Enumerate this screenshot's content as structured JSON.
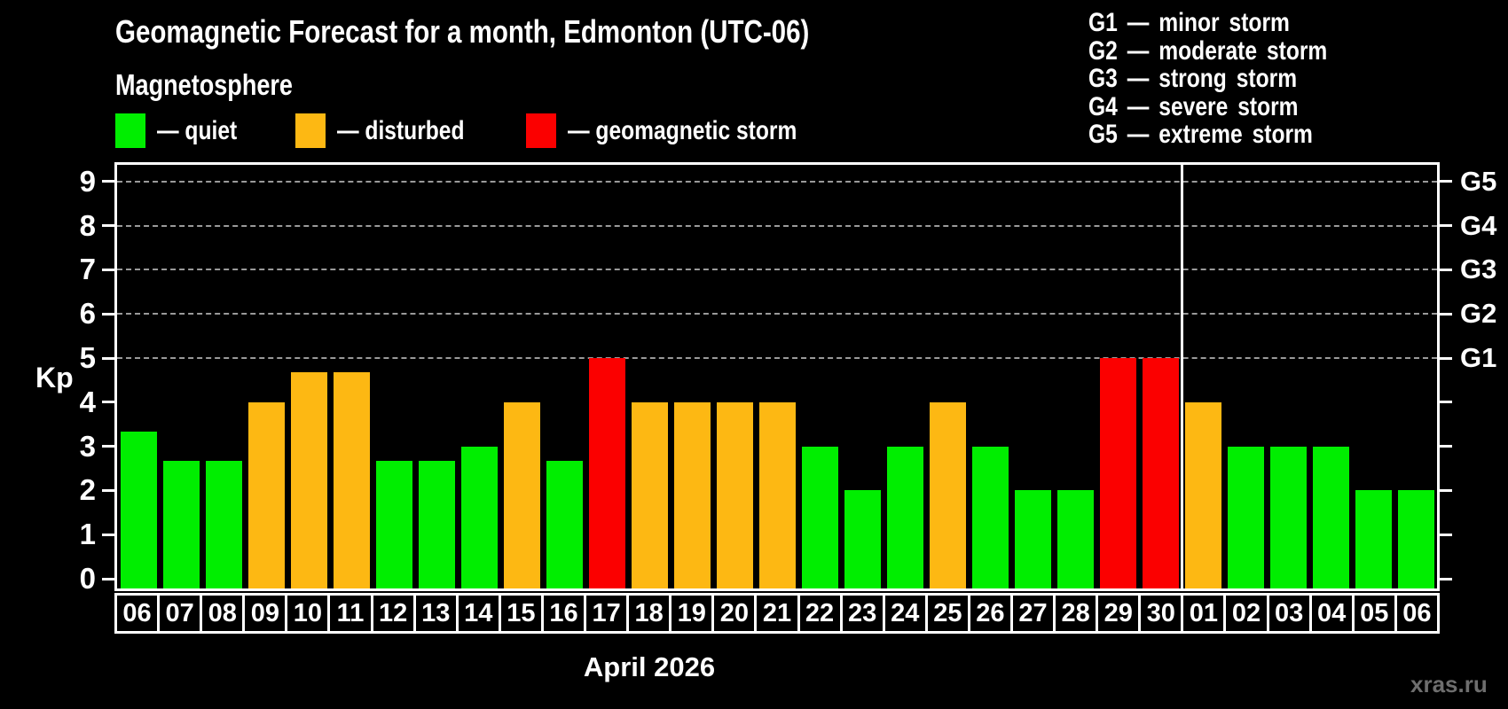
{
  "title": "Geomagnetic Forecast for a month, Edmonton (UTC-06)",
  "subtitle": "Magnetosphere",
  "legend": {
    "quiet": "— quiet",
    "disturbed": "— disturbed",
    "storm": "— geomagnetic storm"
  },
  "g_scale_legend": [
    "G1 — minor storm",
    "G2 — moderate storm",
    "G3 — strong storm",
    "G4 — severe storm",
    "G5 — extreme storm"
  ],
  "watermark": "xras.ru",
  "colors": {
    "quiet": "#00ee00",
    "disturbed": "#fdb813",
    "storm": "#fb0000",
    "grid": "#9a9a9a",
    "axis": "#ffffff",
    "background": "#000000",
    "watermark": "#6e6e6e"
  },
  "chart_data": {
    "type": "bar",
    "title": "Geomagnetic Forecast for a month, Edmonton (UTC-06)",
    "ylabel": "Kp",
    "xlabel": "April 2026",
    "ylim": [
      0,
      9
    ],
    "grid_on": true,
    "y_ticks": [
      0,
      1,
      2,
      3,
      4,
      5,
      6,
      7,
      8,
      9
    ],
    "grid_levels": [
      5,
      6,
      7,
      8,
      9
    ],
    "right_axis_labels": [
      {
        "kp": 5,
        "label": "G1"
      },
      {
        "kp": 6,
        "label": "G2"
      },
      {
        "kp": 7,
        "label": "G3"
      },
      {
        "kp": 8,
        "label": "G4"
      },
      {
        "kp": 9,
        "label": "G5"
      }
    ],
    "month_divider_after_index": 24,
    "categories": [
      "06",
      "07",
      "08",
      "09",
      "10",
      "11",
      "12",
      "13",
      "14",
      "15",
      "16",
      "17",
      "18",
      "19",
      "20",
      "21",
      "22",
      "23",
      "24",
      "25",
      "26",
      "27",
      "28",
      "29",
      "30",
      "01",
      "02",
      "03",
      "04",
      "05",
      "06"
    ],
    "values": [
      3.33,
      2.67,
      2.67,
      4,
      4.67,
      4.67,
      2.67,
      2.67,
      3,
      4,
      2.67,
      5,
      4,
      4,
      4,
      4,
      3,
      2,
      3,
      4,
      3,
      2,
      2,
      5,
      5,
      4,
      3,
      3,
      3,
      2,
      2
    ],
    "statuses": [
      "quiet",
      "quiet",
      "quiet",
      "disturbed",
      "disturbed",
      "disturbed",
      "quiet",
      "quiet",
      "quiet",
      "disturbed",
      "quiet",
      "storm",
      "disturbed",
      "disturbed",
      "disturbed",
      "disturbed",
      "quiet",
      "quiet",
      "quiet",
      "disturbed",
      "quiet",
      "quiet",
      "quiet",
      "storm",
      "storm",
      "disturbed",
      "quiet",
      "quiet",
      "quiet",
      "quiet",
      "quiet"
    ]
  }
}
